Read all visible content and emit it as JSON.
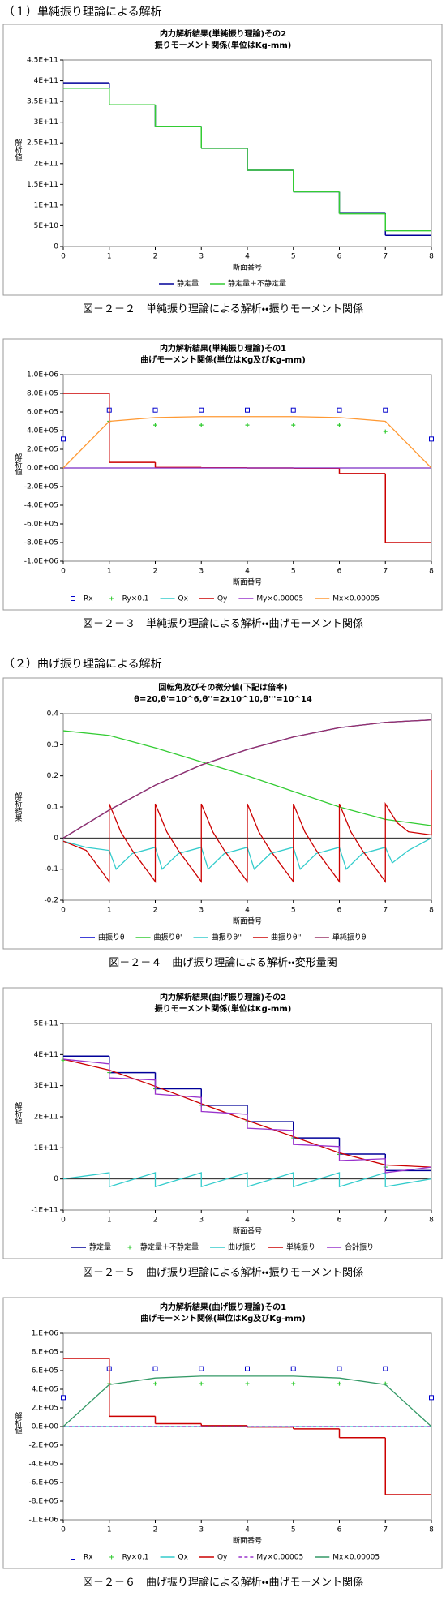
{
  "headings": [
    "（１）単純振り理論による解析",
    "（２）曲げ振り理論による解析"
  ],
  "chart_data": [
    {
      "type": "line",
      "title": "内力解析結果(単純振り理論)その2",
      "subtitle": "振りモーメント関係(単位はKg-mm)",
      "x_label": "断面番号",
      "y_label": "解析値",
      "caption": "図－２－２　単純振り理論による解析・・振りモーメント関係",
      "xlim": [
        0,
        8
      ],
      "xticks": [
        0,
        1,
        2,
        3,
        4,
        5,
        6,
        7,
        8
      ],
      "ylim": [
        0,
        450000000000
      ],
      "yticks": [
        0,
        {
          "value": 50000000000,
          "label": "5E+10"
        },
        {
          "value": 100000000000,
          "label": "1E+11"
        },
        {
          "value": 150000000000,
          "label": "1.5E+11"
        },
        {
          "value": 200000000000,
          "label": "2E+11"
        },
        {
          "value": 250000000000,
          "label": "2.5E+11"
        },
        {
          "value": 300000000000,
          "label": "3E+11"
        },
        {
          "value": 350000000000,
          "label": "3.5E+11"
        },
        {
          "value": 400000000000,
          "label": "4E+11"
        },
        {
          "value": 450000000000,
          "label": "4.5E+11"
        }
      ],
      "series": [
        {
          "name": "静定量",
          "color": "#000099",
          "style": "step",
          "x": [
            0,
            1,
            2,
            3,
            4,
            5,
            6,
            7
          ],
          "values": [
            395000000000,
            342000000000,
            290000000000,
            237000000000,
            184000000000,
            132000000000,
            80000000000,
            27000000000
          ]
        },
        {
          "name": "静定量＋不静定量",
          "color": "#33cc33",
          "style": "step",
          "x": [
            0,
            1,
            2,
            3,
            4,
            5,
            6,
            7
          ],
          "values": [
            382000000000,
            342000000000,
            290000000000,
            237000000000,
            184000000000,
            132000000000,
            79000000000,
            38000000000
          ]
        }
      ]
    },
    {
      "type": "line",
      "title": "内力解析結果(単純振り理論)その1",
      "subtitle": "曲げモーメント関係(単位はKg及びKg-mm)",
      "x_label": "断面番号",
      "y_label": "解析値",
      "caption": "図－２－３　単純振り理論による解析・・曲げモーメント関係",
      "xlim": [
        0,
        8
      ],
      "xticks": [
        0,
        1,
        2,
        3,
        4,
        5,
        6,
        7,
        8
      ],
      "ylim": [
        -1000000,
        1000000
      ],
      "yticks": [
        {
          "value": -1000000,
          "label": "-1.0E+06"
        },
        {
          "value": -800000,
          "label": "-8.0E+05"
        },
        {
          "value": -600000,
          "label": "-6.0E+05"
        },
        {
          "value": -400000,
          "label": "-4.0E+05"
        },
        {
          "value": -200000,
          "label": "-2.0E+05"
        },
        {
          "value": 0,
          "label": "0.0E+00"
        },
        {
          "value": 200000,
          "label": "2.0E+05"
        },
        {
          "value": 400000,
          "label": "4.0E+05"
        },
        {
          "value": 600000,
          "label": "6.0E+05"
        },
        {
          "value": 800000,
          "label": "8.0E+05"
        },
        {
          "value": 1000000,
          "label": "1.0E+06"
        }
      ],
      "series": [
        {
          "name": "Rx",
          "color": "#0000cc",
          "style": "marker",
          "marker": "square",
          "x": [
            0,
            1,
            2,
            3,
            4,
            5,
            6,
            7,
            8
          ],
          "values": [
            310000,
            620000,
            620000,
            620000,
            620000,
            620000,
            620000,
            620000,
            310000
          ]
        },
        {
          "name": "Ry×0.1",
          "color": "#33cc33",
          "style": "marker",
          "marker": "plus",
          "x": [
            1,
            2,
            3,
            4,
            5,
            6,
            7
          ],
          "values": [
            500000,
            460000,
            460000,
            460000,
            460000,
            460000,
            390000
          ]
        },
        {
          "name": "Qx",
          "color": "#33cccc",
          "style": "line",
          "x": [
            0,
            8
          ],
          "values": [
            0,
            0
          ]
        },
        {
          "name": "Qy",
          "color": "#cc0000",
          "style": "step",
          "x": [
            0,
            1,
            2,
            3,
            4,
            5,
            6,
            7
          ],
          "values": [
            800000,
            60000,
            5000,
            2000,
            0,
            -2000,
            -60000,
            -800000
          ]
        },
        {
          "name": "My×0.00005",
          "color": "#9933cc",
          "style": "line",
          "x": [
            0,
            8
          ],
          "values": [
            0,
            0
          ]
        },
        {
          "name": "Mx×0.00005",
          "color": "#ff9933",
          "style": "line",
          "x": [
            0,
            1,
            2,
            3,
            4,
            5,
            6,
            7,
            8
          ],
          "values": [
            0,
            500000,
            540000,
            550000,
            550000,
            550000,
            540000,
            500000,
            0
          ]
        }
      ]
    },
    {
      "type": "line",
      "title": "回転角及びその微分値(下記は倍率)",
      "subtitle": "θ=20,θ'=10^6,θ''=2x10^10,θ'''=10^14",
      "x_label": "断面番号",
      "y_label": "解析結果",
      "caption": "図－２－４　曲げ振り理論による解析・・変形量関",
      "xlim": [
        0,
        8
      ],
      "xticks": [
        0,
        1,
        2,
        3,
        4,
        5,
        6,
        7,
        8
      ],
      "ylim": [
        -0.2,
        0.4
      ],
      "yticks": [
        -0.2,
        -0.1,
        0,
        0.1,
        0.2,
        0.3,
        0.4
      ],
      "series": [
        {
          "name": "曲振りθ",
          "color": "#0000cc",
          "style": "line",
          "x": [
            0,
            1,
            2,
            3,
            4,
            5,
            6,
            7,
            8
          ],
          "values": [
            0,
            0.09,
            0.17,
            0.235,
            0.285,
            0.325,
            0.355,
            0.372,
            0.38
          ]
        },
        {
          "name": "曲振りθ'",
          "color": "#33cc33",
          "style": "line",
          "x": [
            0,
            1,
            2,
            3,
            4,
            5,
            6,
            7,
            8
          ],
          "values": [
            0.345,
            0.33,
            0.29,
            0.245,
            0.2,
            0.15,
            0.1,
            0.06,
            0.04
          ]
        },
        {
          "name": "曲振りθ''",
          "color": "#33cccc",
          "style": "line",
          "x": [
            0,
            0.5,
            1,
            1.15,
            1.5,
            2,
            2.15,
            2.5,
            3,
            3.15,
            3.5,
            4,
            4.15,
            4.5,
            5,
            5.15,
            5.5,
            6,
            6.15,
            6.5,
            7,
            7.15,
            7.5,
            8
          ],
          "values": [
            -0.01,
            -0.03,
            -0.04,
            -0.1,
            -0.05,
            -0.03,
            -0.1,
            -0.05,
            -0.03,
            -0.1,
            -0.05,
            -0.03,
            -0.1,
            -0.05,
            -0.03,
            -0.1,
            -0.05,
            -0.03,
            -0.1,
            -0.05,
            -0.03,
            -0.08,
            -0.04,
            0
          ]
        },
        {
          "name": "曲振りθ'''",
          "color": "#cc0000",
          "style": "line",
          "x": [
            0,
            0.5,
            1,
            1,
            1.25,
            1.5,
            2,
            2,
            2.25,
            2.5,
            3,
            3,
            3.25,
            3.5,
            4,
            4,
            4.25,
            4.5,
            5,
            5,
            5.25,
            5.5,
            6,
            6,
            6.25,
            6.5,
            7,
            7,
            7.25,
            7.5,
            8,
            8
          ],
          "values": [
            -0.01,
            -0.04,
            -0.14,
            0.11,
            0.02,
            -0.04,
            -0.14,
            0.11,
            0.02,
            -0.04,
            -0.14,
            0.11,
            0.02,
            -0.04,
            -0.14,
            0.11,
            0.02,
            -0.04,
            -0.14,
            0.11,
            0.02,
            -0.04,
            -0.14,
            0.11,
            0.02,
            -0.04,
            -0.14,
            0.11,
            0.05,
            0.02,
            0.01,
            0.22
          ]
        },
        {
          "name": "単純振りθ",
          "color": "#993366",
          "style": "line",
          "x": [
            0,
            1,
            2,
            3,
            4,
            5,
            6,
            7,
            8
          ],
          "values": [
            0,
            0.09,
            0.17,
            0.235,
            0.285,
            0.325,
            0.355,
            0.372,
            0.38
          ]
        }
      ]
    },
    {
      "type": "line",
      "title": "内力解析結果(曲げ振り理論)その2",
      "subtitle": "振りモーメント関係(単位はKg-mm)",
      "x_label": "断面番号",
      "y_label": "解析値",
      "caption": "図－２－５　曲げ振り理論による解析・・振りモーメント関係",
      "xlim": [
        0,
        8
      ],
      "xticks": [
        0,
        1,
        2,
        3,
        4,
        5,
        6,
        7,
        8
      ],
      "ylim": [
        -100000000000,
        500000000000
      ],
      "yticks": [
        {
          "value": -100000000000,
          "label": "-1E+11"
        },
        0,
        {
          "value": 100000000000,
          "label": "1E+11"
        },
        {
          "value": 200000000000,
          "label": "2E+11"
        },
        {
          "value": 300000000000,
          "label": "3E+11"
        },
        {
          "value": 400000000000,
          "label": "4E+11"
        },
        {
          "value": 500000000000,
          "label": "5E+11"
        }
      ],
      "series": [
        {
          "name": "静定量",
          "color": "#000099",
          "style": "step",
          "x": [
            0,
            1,
            2,
            3,
            4,
            5,
            6,
            7
          ],
          "values": [
            395000000000,
            342000000000,
            290000000000,
            237000000000,
            184000000000,
            132000000000,
            80000000000,
            27000000000
          ]
        },
        {
          "name": "静定量＋不静定量",
          "color": "#33cc33",
          "style": "marker",
          "marker": "plus",
          "x": [
            0,
            1,
            2,
            3,
            4,
            5,
            6,
            7
          ],
          "values": [
            382000000000,
            342000000000,
            290000000000,
            237000000000,
            184000000000,
            132000000000,
            79000000000,
            38000000000
          ]
        },
        {
          "name": "曲げ振り",
          "color": "#33cccc",
          "style": "line",
          "x": [
            0,
            1,
            1,
            2,
            2,
            3,
            3,
            4,
            4,
            5,
            5,
            6,
            6,
            7,
            7,
            8
          ],
          "values": [
            0,
            20000000000,
            -25000000000,
            20000000000,
            -25000000000,
            20000000000,
            -25000000000,
            20000000000,
            -25000000000,
            20000000000,
            -25000000000,
            20000000000,
            -25000000000,
            20000000000,
            -25000000000,
            0
          ]
        },
        {
          "name": "単純振り",
          "color": "#cc0000",
          "style": "line",
          "x": [
            0,
            1,
            2,
            3,
            4,
            5,
            6,
            7,
            8
          ],
          "values": [
            385000000000,
            350000000000,
            298000000000,
            242000000000,
            188000000000,
            136000000000,
            84000000000,
            45000000000,
            38000000000
          ]
        },
        {
          "name": "合計振り",
          "color": "#9933cc",
          "style": "line",
          "x": [
            0,
            1,
            1,
            2,
            2,
            3,
            3,
            4,
            4,
            5,
            5,
            6,
            6,
            7,
            7,
            8
          ],
          "values": [
            385000000000,
            370000000000,
            325000000000,
            318000000000,
            273000000000,
            262000000000,
            217000000000,
            208000000000,
            163000000000,
            156000000000,
            111000000000,
            104000000000,
            59000000000,
            65000000000,
            20000000000,
            38000000000
          ]
        }
      ]
    },
    {
      "type": "line",
      "title": "内力解析結果(曲げ振り理論)その1",
      "subtitle": "曲げモーメント関係(単位はKg及びKg-mm)",
      "x_label": "断面番号",
      "y_label": "解析値",
      "caption": "図－２－６　曲げ振り理論による解析・・曲げモーメント関係",
      "xlim": [
        0,
        8
      ],
      "xticks": [
        0,
        1,
        2,
        3,
        4,
        5,
        6,
        7,
        8
      ],
      "ylim": [
        -1000000,
        1000000
      ],
      "yticks": [
        {
          "value": -1000000,
          "label": "-1.E+06"
        },
        {
          "value": -800000,
          "label": "-8.E+05"
        },
        {
          "value": -600000,
          "label": "-6.E+05"
        },
        {
          "value": -400000,
          "label": "-4.E+05"
        },
        {
          "value": -200000,
          "label": "-2.E+05"
        },
        {
          "value": 0,
          "label": "0.E+00"
        },
        {
          "value": 200000,
          "label": "2.E+05"
        },
        {
          "value": 400000,
          "label": "4.E+05"
        },
        {
          "value": 600000,
          "label": "6.E+05"
        },
        {
          "value": 800000,
          "label": "8.E+05"
        },
        {
          "value": 1000000,
          "label": "1.E+06"
        }
      ],
      "series": [
        {
          "name": "Rx",
          "color": "#0000cc",
          "style": "marker",
          "marker": "square",
          "x": [
            0,
            1,
            2,
            3,
            4,
            5,
            6,
            7,
            8
          ],
          "values": [
            310000,
            620000,
            620000,
            620000,
            620000,
            620000,
            620000,
            620000,
            310000
          ]
        },
        {
          "name": "Ry×0.1",
          "color": "#33cc33",
          "style": "marker",
          "marker": "plus",
          "x": [
            1,
            2,
            3,
            4,
            5,
            6,
            7
          ],
          "values": [
            460000,
            460000,
            460000,
            460000,
            460000,
            460000,
            460000
          ]
        },
        {
          "name": "Qx",
          "color": "#33cccc",
          "style": "line",
          "x": [
            0,
            8
          ],
          "values": [
            0,
            0
          ]
        },
        {
          "name": "Qy",
          "color": "#cc0000",
          "style": "step",
          "x": [
            0,
            1,
            2,
            3,
            4,
            5,
            6,
            7
          ],
          "values": [
            730000,
            110000,
            30000,
            10000,
            -5000,
            -25000,
            -120000,
            -730000
          ]
        },
        {
          "name": "My×0.00005",
          "color": "#9933cc",
          "style": "line",
          "dash": true,
          "x": [
            0,
            8
          ],
          "values": [
            0,
            0
          ]
        },
        {
          "name": "Mx×0.00005",
          "color": "#339966",
          "style": "line",
          "x": [
            0,
            1,
            2,
            3,
            4,
            5,
            6,
            7,
            8
          ],
          "values": [
            0,
            450000,
            520000,
            540000,
            540000,
            540000,
            520000,
            450000,
            0
          ]
        }
      ]
    }
  ]
}
